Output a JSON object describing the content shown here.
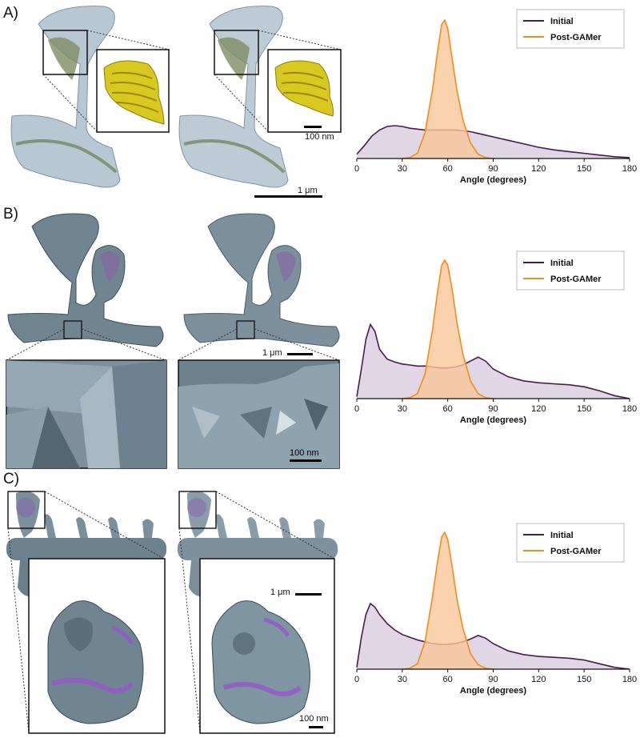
{
  "panels": [
    {
      "label": "A)",
      "scale_main": "1 μm",
      "scale_inset": "100 nm"
    },
    {
      "label": "B)",
      "scale_main": "1 μm",
      "scale_inset": "100 nm"
    },
    {
      "label": "C)",
      "scale_main": "1 μm",
      "scale_inset": "100 nm"
    }
  ],
  "colors": {
    "initial": "#4a1a4f",
    "initial_fill": "#d6c8dc",
    "post": "#f28c1b",
    "post_fill": "#f9c79a",
    "mesh": "#8fa6b5",
    "mesh_dark": "#5f7683",
    "organelle": "#c9bb1e",
    "highlight": "#9b4fd1"
  },
  "chart_data": [
    {
      "type": "area",
      "xlabel": "Angle (degrees)",
      "xlim": [
        0,
        180
      ],
      "xticks": [
        0,
        30,
        60,
        90,
        120,
        150,
        180
      ],
      "legend": "top-right",
      "series": [
        {
          "name": "Initial",
          "x": [
            0,
            5,
            10,
            15,
            20,
            25,
            30,
            35,
            40,
            45,
            50,
            55,
            60,
            65,
            70,
            75,
            80,
            85,
            90,
            100,
            110,
            120,
            130,
            140,
            150,
            160,
            170,
            180
          ],
          "y": [
            0.05,
            0.15,
            0.26,
            0.33,
            0.37,
            0.38,
            0.37,
            0.35,
            0.34,
            0.33,
            0.33,
            0.33,
            0.33,
            0.33,
            0.32,
            0.31,
            0.29,
            0.27,
            0.25,
            0.21,
            0.17,
            0.13,
            0.1,
            0.08,
            0.06,
            0.04,
            0.02,
            0.01
          ]
        },
        {
          "name": "Post-GAMer",
          "x": [
            30,
            35,
            40,
            45,
            50,
            53,
            56,
            58,
            60,
            63,
            66,
            70,
            75,
            80,
            85,
            90
          ],
          "y": [
            0,
            0.01,
            0.06,
            0.3,
            0.8,
            1.2,
            1.55,
            1.6,
            1.5,
            1.15,
            0.8,
            0.45,
            0.18,
            0.05,
            0.01,
            0
          ]
        }
      ]
    },
    {
      "type": "area",
      "xlabel": "Angle (degrees)",
      "xlim": [
        0,
        180
      ],
      "xticks": [
        0,
        30,
        60,
        90,
        120,
        150,
        180
      ],
      "legend": "top-right",
      "series": [
        {
          "name": "Initial",
          "x": [
            0,
            3,
            6,
            9,
            12,
            15,
            20,
            25,
            30,
            35,
            40,
            45,
            50,
            55,
            60,
            65,
            70,
            75,
            80,
            85,
            90,
            100,
            110,
            120,
            130,
            140,
            150,
            160,
            170,
            180
          ],
          "y": [
            0.02,
            0.3,
            0.6,
            0.75,
            0.68,
            0.5,
            0.4,
            0.37,
            0.35,
            0.34,
            0.33,
            0.33,
            0.32,
            0.31,
            0.31,
            0.32,
            0.34,
            0.38,
            0.42,
            0.38,
            0.3,
            0.22,
            0.18,
            0.16,
            0.15,
            0.14,
            0.12,
            0.08,
            0.03,
            0.0
          ]
        },
        {
          "name": "Post-GAMer",
          "x": [
            30,
            35,
            40,
            45,
            50,
            53,
            56,
            58,
            60,
            63,
            66,
            70,
            75,
            80,
            85,
            90
          ],
          "y": [
            0,
            0.01,
            0.05,
            0.25,
            0.7,
            1.05,
            1.35,
            1.4,
            1.35,
            1.1,
            0.78,
            0.45,
            0.18,
            0.05,
            0.01,
            0
          ]
        }
      ]
    },
    {
      "type": "area",
      "xlabel": "Angle (degrees)",
      "xlim": [
        0,
        180
      ],
      "xticks": [
        0,
        30,
        60,
        90,
        120,
        150,
        180
      ],
      "legend": "top-right",
      "series": [
        {
          "name": "Initial",
          "x": [
            0,
            3,
            6,
            9,
            12,
            15,
            20,
            25,
            30,
            35,
            40,
            45,
            50,
            55,
            60,
            65,
            70,
            75,
            80,
            85,
            90,
            100,
            110,
            120,
            130,
            140,
            150,
            160,
            170,
            180
          ],
          "y": [
            0.02,
            0.35,
            0.6,
            0.72,
            0.68,
            0.6,
            0.5,
            0.43,
            0.38,
            0.35,
            0.32,
            0.3,
            0.28,
            0.27,
            0.27,
            0.28,
            0.3,
            0.33,
            0.37,
            0.34,
            0.28,
            0.2,
            0.16,
            0.14,
            0.13,
            0.12,
            0.1,
            0.06,
            0.02,
            0.0
          ]
        },
        {
          "name": "Post-GAMer",
          "x": [
            30,
            35,
            40,
            45,
            50,
            53,
            56,
            58,
            60,
            63,
            66,
            70,
            75,
            80,
            85,
            90
          ],
          "y": [
            0,
            0.01,
            0.06,
            0.3,
            0.8,
            1.15,
            1.45,
            1.5,
            1.42,
            1.12,
            0.78,
            0.45,
            0.17,
            0.05,
            0.01,
            0
          ]
        }
      ]
    }
  ]
}
